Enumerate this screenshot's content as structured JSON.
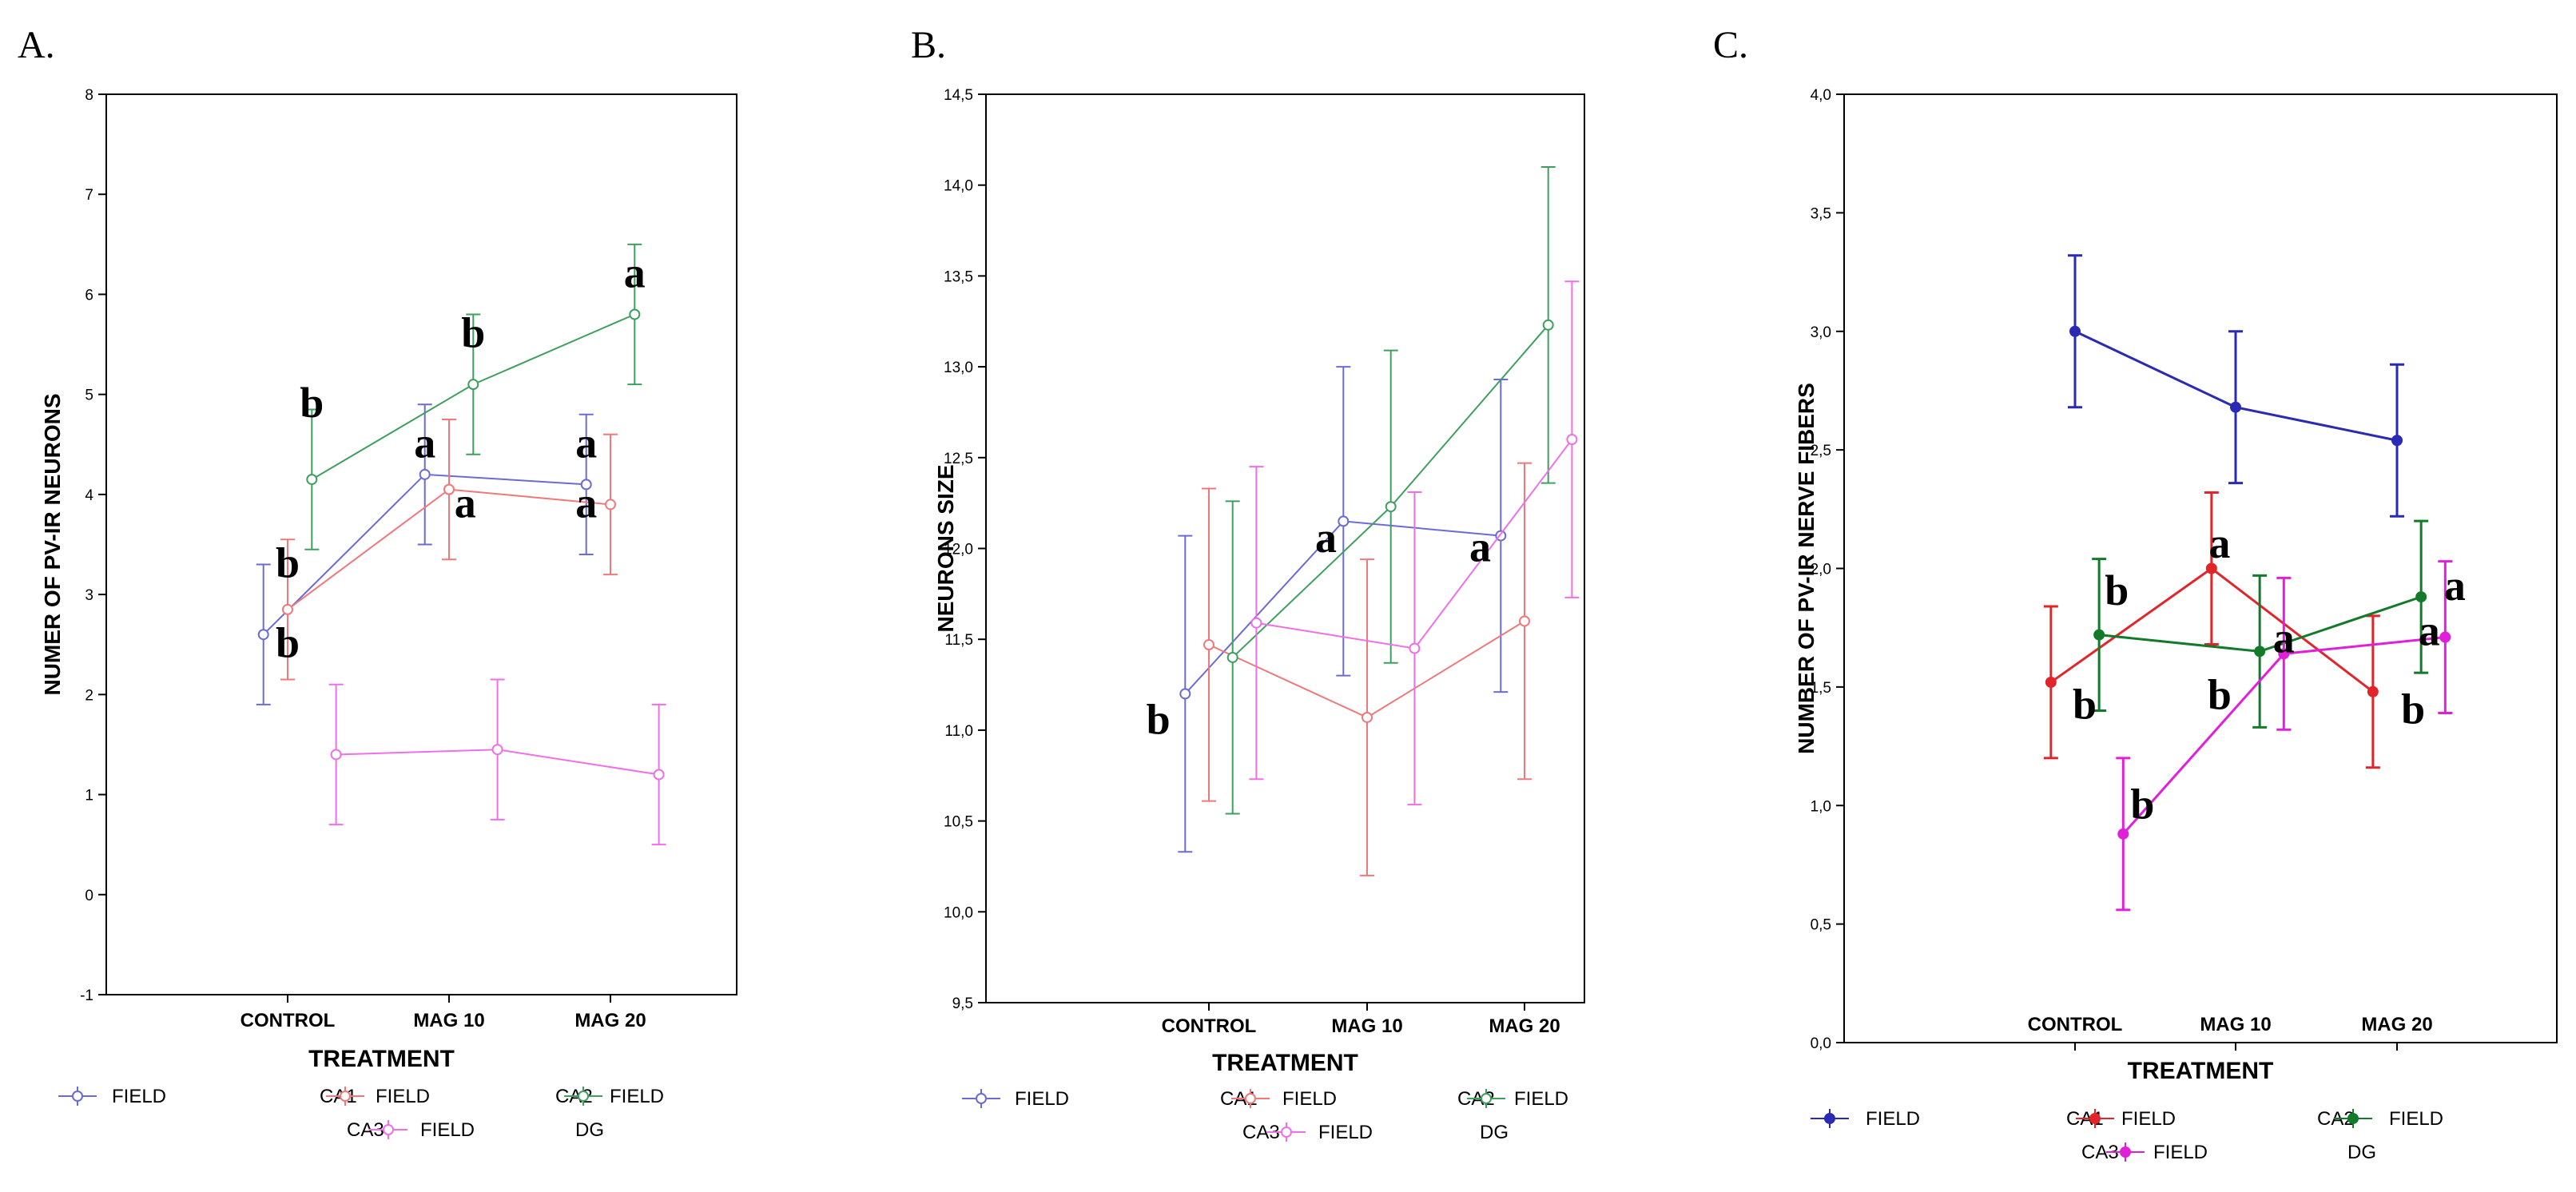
{
  "colors": {
    "CA1": "#6b6bd6",
    "CA2": "#f0787a",
    "CA3": "#3f9f5f",
    "DG": "#ef6fe6"
  },
  "chart_data": [
    {
      "type": "line",
      "panel": "A.",
      "title": "",
      "xlabel": "TREATMENT",
      "ylabel": "NUMER OF PV-IR NEURONS",
      "categories": [
        "CONTROL",
        "MAG 10",
        "MAG 20"
      ],
      "ylim": [
        -1,
        8
      ],
      "yticks": [
        "-1",
        "0",
        "1",
        "2",
        "3",
        "4",
        "5",
        "6",
        "7",
        "8"
      ],
      "series": [
        {
          "name": "CA1",
          "color": "#6b6bd6",
          "offset": -0.15,
          "values": [
            2.6,
            4.2,
            4.1
          ],
          "errors": [
            0.7,
            0.7,
            0.7
          ]
        },
        {
          "name": "CA2",
          "color": "#f0787a",
          "offset": 0.0,
          "values": [
            2.85,
            4.05,
            3.9
          ],
          "errors": [
            0.7,
            0.7,
            0.7
          ]
        },
        {
          "name": "CA3",
          "color": "#3f9f5f",
          "offset": 0.15,
          "values": [
            4.15,
            5.1,
            5.8
          ],
          "errors": [
            0.7,
            0.7,
            0.7
          ]
        },
        {
          "name": "DG",
          "color": "#ef6fe6",
          "offset": 0.3,
          "values": [
            1.4,
            1.45,
            1.2
          ],
          "errors": [
            0.7,
            0.7,
            0.7
          ]
        }
      ],
      "annotations": [
        {
          "text": "b",
          "cat": 0,
          "offset": 0.15,
          "y": 4.9
        },
        {
          "text": "b",
          "cat": 0,
          "offset": 0.0,
          "y": 3.3
        },
        {
          "text": "b",
          "cat": 0,
          "offset": 0.0,
          "y": 2.5
        },
        {
          "text": "a",
          "cat": 1,
          "offset": -0.15,
          "y": 4.5
        },
        {
          "text": "b",
          "cat": 1,
          "offset": 0.15,
          "y": 5.6
        },
        {
          "text": "a",
          "cat": 1,
          "offset": 0.1,
          "y": 3.9
        },
        {
          "text": "a",
          "cat": 2,
          "offset": -0.15,
          "y": 4.5
        },
        {
          "text": "a",
          "cat": 2,
          "offset": -0.15,
          "y": 3.9
        },
        {
          "text": "a",
          "cat": 2,
          "offset": 0.15,
          "y": 6.2
        }
      ],
      "legend": {
        "row1": [
          {
            "label": "FIELD",
            "series": "CA1"
          },
          {
            "label": "CA1",
            "series": "CA2"
          },
          {
            "label": "FIELD",
            "series": "CA2"
          },
          {
            "label": "CA2",
            "series": "CA3"
          },
          {
            "label": "FIELD",
            "series": "CA3"
          }
        ],
        "row2": [
          {
            "label": "CA3",
            "series": "DG"
          },
          {
            "label": "FIELD",
            "series": "DG"
          },
          {
            "label": "DG",
            "series": "DG"
          }
        ]
      }
    },
    {
      "type": "line",
      "panel": "B.",
      "title": "",
      "xlabel": "TREATMENT",
      "ylabel": "NEURONS SIZE",
      "categories": [
        "CONTROL",
        "MAG 10",
        "MAG 20"
      ],
      "ylim": [
        9.5,
        14.5
      ],
      "yticks": [
        "9,5",
        "10,0",
        "10,5",
        "11,0",
        "11,5",
        "12,0",
        "12,5",
        "13,0",
        "13,5",
        "14,0",
        "14,5"
      ],
      "series": [
        {
          "name": "CA1",
          "color": "#6b6bd6",
          "offset": -0.15,
          "values": [
            11.2,
            12.15,
            12.07
          ],
          "errors": [
            0.87,
            0.85,
            0.86
          ]
        },
        {
          "name": "CA2",
          "color": "#f0787a",
          "offset": 0.0,
          "values": [
            11.47,
            11.07,
            11.6
          ],
          "errors": [
            0.86,
            0.87,
            0.87
          ]
        },
        {
          "name": "CA3",
          "color": "#3f9f5f",
          "offset": 0.15,
          "values": [
            11.4,
            12.23,
            13.23
          ],
          "errors": [
            0.86,
            0.86,
            0.87
          ]
        },
        {
          "name": "DG",
          "color": "#ef6fe6",
          "offset": 0.3,
          "values": [
            11.59,
            11.45,
            12.6
          ],
          "errors": [
            0.86,
            0.86,
            0.87
          ]
        }
      ],
      "annotations": [
        {
          "text": "b",
          "cat": 0,
          "offset": -0.32,
          "y": 11.05
        },
        {
          "text": "a",
          "cat": 1,
          "offset": -0.26,
          "y": 12.05
        },
        {
          "text": "a",
          "cat": 2,
          "offset": -0.28,
          "y": 12.0
        }
      ],
      "legend": {
        "row1": [
          {
            "label": "FIELD",
            "series": "CA1"
          },
          {
            "label": "CA1",
            "series": "CA2"
          },
          {
            "label": "FIELD",
            "series": "CA2"
          },
          {
            "label": "CA2",
            "series": "CA3"
          },
          {
            "label": "FIELD",
            "series": "CA3"
          }
        ],
        "row2": [
          {
            "label": "CA3",
            "series": "DG"
          },
          {
            "label": "FIELD",
            "series": "DG"
          },
          {
            "label": "DG",
            "series": "DG"
          }
        ]
      }
    },
    {
      "type": "line",
      "panel": "C.",
      "title": "",
      "xlabel": "TREATMENT",
      "ylabel": "NUMBER OF PV-IR NERVE FIBERS",
      "categories": [
        "CONTROL",
        "MAG 10",
        "MAG 20"
      ],
      "ylim": [
        0.0,
        4.0
      ],
      "yticks": [
        "0,0",
        "0,5",
        "1,0",
        "1,5",
        "2,0",
        "2,5",
        "3,0",
        "3,5",
        "4,0"
      ],
      "series": [
        {
          "name": "CA1",
          "color": "#2a2ab5",
          "offset": 0.0,
          "values": [
            3.0,
            2.68,
            2.54
          ],
          "errors": [
            0.32,
            0.32,
            0.32
          ]
        },
        {
          "name": "CA2",
          "color": "#e0262a",
          "offset": -0.15,
          "values": [
            1.52,
            2.0,
            1.48
          ],
          "errors": [
            0.32,
            0.32,
            0.32
          ]
        },
        {
          "name": "CA3",
          "color": "#127a2a",
          "offset": 0.15,
          "values": [
            1.72,
            1.65,
            1.88
          ],
          "errors": [
            0.32,
            0.32,
            0.32
          ]
        },
        {
          "name": "DG",
          "color": "#e020d8",
          "offset": 0.3,
          "values": [
            0.88,
            1.64,
            1.71
          ],
          "errors": [
            0.32,
            0.32,
            0.32
          ]
        }
      ],
      "annotations": [
        {
          "text": "b",
          "cat": 0,
          "offset": 0.26,
          "y": 1.9
        },
        {
          "text": "b",
          "cat": 0,
          "offset": 0.06,
          "y": 1.42
        },
        {
          "text": "b",
          "cat": 0,
          "offset": 0.42,
          "y": 1.0
        },
        {
          "text": "a",
          "cat": 1,
          "offset": -0.1,
          "y": 2.1
        },
        {
          "text": "a",
          "cat": 1,
          "offset": 0.3,
          "y": 1.7
        },
        {
          "text": "b",
          "cat": 1,
          "offset": -0.1,
          "y": 1.46
        },
        {
          "text": "b",
          "cat": 2,
          "offset": 0.1,
          "y": 1.4
        },
        {
          "text": "a",
          "cat": 2,
          "offset": 0.36,
          "y": 1.92
        },
        {
          "text": "a",
          "cat": 2,
          "offset": 0.2,
          "y": 1.73
        }
      ],
      "legend": {
        "row1": [
          {
            "label": "FIELD",
            "series": "CA1"
          },
          {
            "label": "CA1",
            "series": "CA2"
          },
          {
            "label": "FIELD",
            "series": "CA2"
          },
          {
            "label": "CA2",
            "series": "CA3"
          },
          {
            "label": "FIELD",
            "series": "CA3"
          }
        ],
        "row2": [
          {
            "label": "CA3",
            "series": "DG"
          },
          {
            "label": "FIELD",
            "series": "DG"
          },
          {
            "label": "DG",
            "series": "DG"
          }
        ]
      }
    }
  ]
}
